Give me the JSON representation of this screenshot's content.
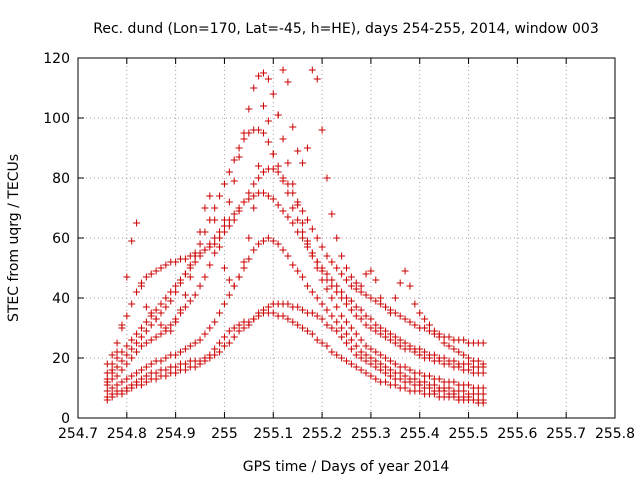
{
  "chart_data": {
    "type": "scatter",
    "title": "Rec. dund (Lon=170, Lat=-45, h=HE), days 254-255, 2014, window 003",
    "xlabel": "GPS time / Days of year 2014",
    "ylabel": "STEC from uqrg / TECUs",
    "xlim": [
      254.7,
      255.8
    ],
    "ylim": [
      0,
      120
    ],
    "xticks": [
      254.7,
      254.8,
      254.9,
      255,
      255.1,
      255.2,
      255.3,
      255.4,
      255.5,
      255.6,
      255.7,
      255.8
    ],
    "xtick_labels": [
      "254.7",
      "254.8",
      "254.9",
      "255",
      "255.1",
      "255.2",
      "255.3",
      "255.4",
      "255.5",
      "255.6",
      "255.7",
      "255.8"
    ],
    "yticks": [
      0,
      20,
      40,
      60,
      80,
      100,
      120
    ],
    "ytick_labels": [
      "0",
      "20",
      "40",
      "60",
      "80",
      "100",
      "120"
    ],
    "grid": true,
    "marker": "plus",
    "color": "#cc0000",
    "x_start": 254.76,
    "x_step": 0.01,
    "series": [
      {
        "values": [
          7,
          8,
          9,
          9,
          10,
          11,
          12,
          13,
          14,
          15,
          15,
          16,
          16,
          17,
          17,
          18,
          18,
          19,
          19,
          19,
          20,
          20,
          21,
          22,
          24,
          25,
          27,
          29,
          30,
          31,
          33,
          35,
          36,
          37,
          38,
          38,
          38,
          38,
          37,
          37,
          36,
          35,
          35,
          34,
          33,
          31,
          30,
          29,
          27,
          25,
          23,
          21,
          20,
          19,
          18,
          17,
          16,
          15,
          14,
          13,
          13,
          12,
          12,
          11,
          11,
          10,
          10,
          9,
          9,
          9,
          8,
          8,
          7,
          7,
          7,
          6,
          6,
          6
        ]
      },
      {
        "values": [
          9,
          10,
          11,
          12,
          13,
          14,
          15,
          16,
          17,
          18,
          19,
          19,
          20,
          21,
          21,
          22,
          23,
          24,
          25,
          26,
          28,
          30,
          32,
          35,
          38,
          41,
          44,
          47,
          50,
          53,
          56,
          58,
          59,
          60,
          59,
          58,
          56,
          54,
          51,
          49,
          47,
          44,
          42,
          40,
          38,
          36,
          34,
          32,
          30,
          28,
          26,
          24,
          22,
          21,
          20,
          19,
          18,
          17,
          16,
          15,
          15,
          14,
          13,
          13,
          12,
          12,
          11,
          11,
          10,
          10,
          10,
          9,
          9,
          9,
          8,
          8,
          8,
          8
        ]
      },
      {
        "values": [
          11,
          13,
          14,
          16,
          18,
          20,
          22,
          24,
          25,
          26,
          27,
          28,
          29,
          31,
          33,
          35,
          37,
          39,
          41,
          44,
          47,
          51,
          55,
          60,
          66,
          72,
          79,
          87,
          95,
          103,
          110,
          114,
          115,
          113,
          108,
          101,
          93,
          85,
          78,
          71,
          65,
          59,
          54,
          50,
          46,
          43,
          40,
          37,
          34,
          32,
          30,
          28,
          26,
          24,
          23,
          22,
          21,
          20,
          19,
          18,
          17,
          17,
          16,
          15,
          15,
          14,
          14,
          13,
          13,
          12,
          12,
          12,
          11,
          11,
          11,
          10,
          10,
          10
        ]
      },
      {
        "values": [
          13,
          15,
          17,
          19,
          21,
          23,
          25,
          27,
          29,
          31,
          33,
          35,
          37,
          39,
          42,
          45,
          48,
          51,
          55,
          58,
          62,
          66,
          70,
          74,
          78,
          82,
          86,
          90,
          93,
          95,
          96,
          96,
          95,
          92,
          88,
          84,
          79,
          75,
          70,
          66,
          62,
          58,
          55,
          52,
          49,
          46,
          44,
          42,
          40,
          38,
          36,
          34,
          33,
          31,
          30,
          29,
          28,
          27,
          26,
          25,
          24,
          23,
          23,
          22,
          21,
          20,
          20,
          19,
          19,
          18,
          18,
          17,
          17,
          16,
          16,
          15,
          15,
          15
        ]
      },
      {
        "values": [
          15,
          18,
          20,
          22,
          24,
          26,
          28,
          30,
          32,
          34,
          36,
          38,
          40,
          42,
          44,
          46,
          48,
          50,
          52,
          54,
          56,
          58,
          60,
          62,
          64,
          66,
          68,
          70,
          72,
          73,
          74,
          75,
          75,
          74,
          73,
          71,
          69,
          67,
          65,
          62,
          60,
          57,
          55,
          52,
          50,
          48,
          46,
          44,
          42,
          40,
          39,
          37,
          36,
          34,
          33,
          31,
          30,
          29,
          28,
          27,
          26,
          25,
          24,
          23,
          23,
          22,
          21,
          21,
          20,
          20,
          19,
          19,
          18,
          18,
          18,
          17,
          17,
          17
        ]
      },
      {
        "values": [
          18,
          21,
          25,
          30,
          34,
          38,
          42,
          45,
          47,
          48,
          49,
          50,
          51,
          52,
          52,
          53,
          53,
          54,
          54,
          55,
          56,
          57,
          58,
          60,
          62,
          64,
          66,
          69,
          72,
          75,
          78,
          80,
          82,
          83,
          83,
          82,
          80,
          78,
          75,
          72,
          69,
          66,
          63,
          60,
          57,
          54,
          52,
          50,
          48,
          46,
          44,
          43,
          42,
          41,
          40,
          39,
          38,
          37,
          36,
          35,
          34,
          33,
          32,
          31,
          30,
          30,
          29,
          28,
          28,
          27,
          27,
          26,
          26,
          26,
          25,
          25,
          25,
          25
        ]
      },
      {
        "values": [
          12,
          16,
          22,
          31,
          47,
          59,
          65,
          44,
          37,
          35,
          33,
          31,
          30,
          29,
          32,
          36,
          41,
          47,
          54,
          62,
          70,
          74,
          66,
          57,
          50,
          46,
          44,
          47,
          52,
          60,
          70,
          84,
          104,
          99,
          88,
          101,
          116,
          112,
          97,
          89,
          85,
          90,
          116,
          113,
          96,
          80,
          68,
          60,
          54,
          50,
          47,
          45,
          44,
          48,
          49,
          46,
          40,
          37,
          35,
          40,
          45,
          49,
          44,
          38,
          35,
          33,
          31,
          29,
          27,
          25,
          24,
          23,
          22,
          21,
          20,
          19,
          19,
          18
        ]
      },
      {
        "values": [
          6,
          7,
          8,
          8,
          9,
          10,
          11,
          11,
          12,
          13,
          13,
          14,
          14,
          15,
          15,
          16,
          16,
          17,
          17,
          18,
          19,
          21,
          23,
          25,
          27,
          29,
          30,
          31,
          32,
          32,
          33,
          34,
          35,
          35,
          35,
          34,
          34,
          33,
          32,
          31,
          30,
          29,
          28,
          26,
          25,
          24,
          22,
          21,
          20,
          19,
          18,
          17,
          16,
          15,
          14,
          13,
          12,
          12,
          11,
          11,
          10,
          10,
          9,
          9,
          9,
          8,
          8,
          8,
          7,
          7,
          7,
          7,
          6,
          6,
          6,
          6,
          5,
          5
        ]
      }
    ]
  }
}
